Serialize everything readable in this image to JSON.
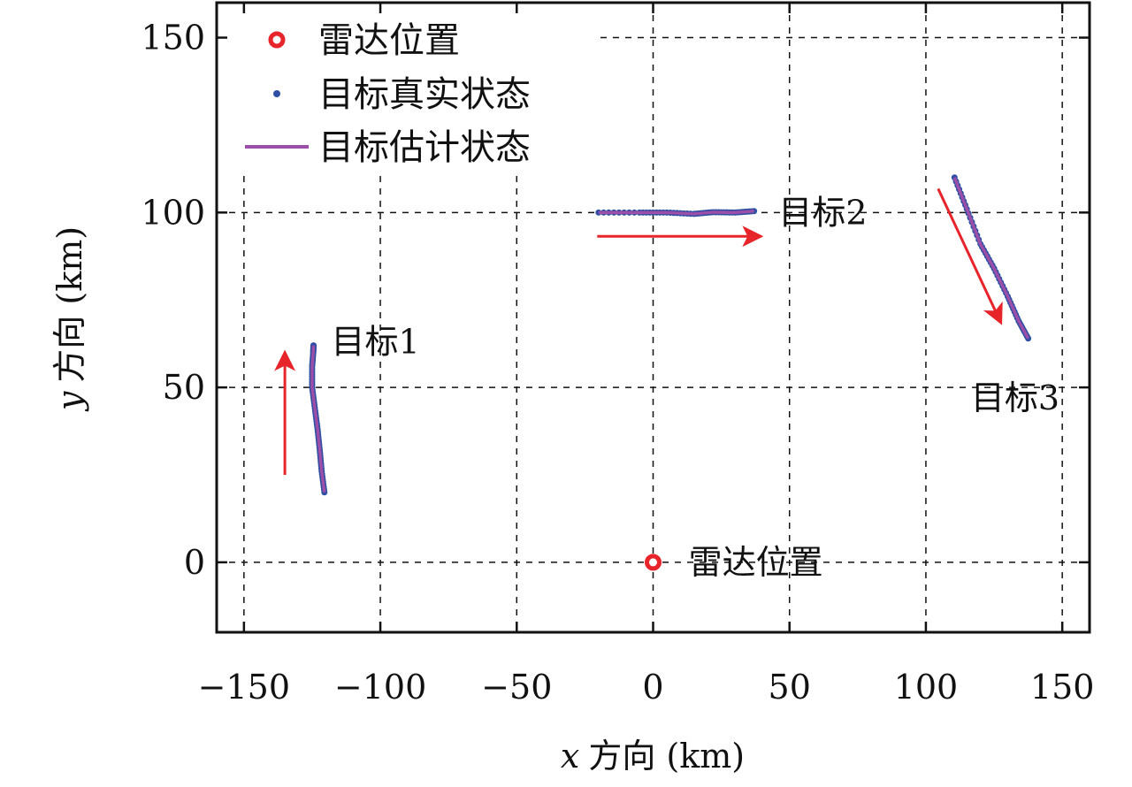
{
  "chart_data": {
    "type": "scatter",
    "xlabel": {
      "var": "x",
      "text": "方向 (km)"
    },
    "ylabel": {
      "var": "y",
      "text": "方向 (km)"
    },
    "xlim": [
      -160,
      160
    ],
    "ylim": [
      -20,
      160
    ],
    "xticks": [
      -150,
      -100,
      -50,
      0,
      50,
      100,
      150
    ],
    "xtick_labels": [
      "−150",
      "−100",
      "−50",
      "0",
      "50",
      "100",
      "150"
    ],
    "yticks": [
      0,
      50,
      100,
      150
    ],
    "ytick_labels": [
      "0",
      "50",
      "100",
      "150"
    ],
    "grid": true,
    "legend_position": "top-left",
    "legend": [
      {
        "label": "雷达位置",
        "marker": "ring",
        "color": "#e8242b"
      },
      {
        "label": "目标真实状态",
        "marker": "dot",
        "color": "#2e4fa3"
      },
      {
        "label": "目标估计状态",
        "marker": "line",
        "color": "#9b4fa8"
      }
    ],
    "radar": {
      "x": 0,
      "y": 0,
      "label": "雷达位置"
    },
    "targets": [
      {
        "name": "目标1",
        "label_at": [
          -118,
          63
        ],
        "track": [
          [
            -120.5,
            20
          ],
          [
            -121.5,
            26
          ],
          [
            -122.2,
            32
          ],
          [
            -123,
            38
          ],
          [
            -124,
            44
          ],
          [
            -125,
            50
          ],
          [
            -125,
            56
          ],
          [
            -124.6,
            60
          ],
          [
            -124.5,
            62
          ]
        ],
        "arrow": [
          [
            -135,
            25
          ],
          [
            -135,
            60
          ]
        ]
      },
      {
        "name": "目标2",
        "label_at": [
          46,
          100
        ],
        "track": [
          [
            -20,
            100
          ],
          [
            -5,
            100
          ],
          [
            5,
            100
          ],
          [
            15,
            99.6
          ],
          [
            22,
            100.1
          ],
          [
            30,
            100
          ],
          [
            37,
            100.4
          ]
        ],
        "arrow": [
          [
            -20.5,
            93.2
          ],
          [
            39.5,
            93.2
          ]
        ]
      },
      {
        "name": "目标3",
        "label_at": [
          116.5,
          47
        ],
        "track": [
          [
            110.5,
            110
          ],
          [
            115,
            101
          ],
          [
            120,
            91
          ],
          [
            125,
            84
          ],
          [
            130,
            76
          ],
          [
            134,
            69
          ],
          [
            137.5,
            64
          ]
        ],
        "arrow": [
          [
            104.5,
            106.8
          ],
          [
            127.5,
            68.5
          ]
        ]
      }
    ],
    "colors": {
      "true": "#2e4fa3",
      "estimate": "#9b4fa8",
      "radar": "#e8242b",
      "arrow": "#e8242b"
    }
  }
}
